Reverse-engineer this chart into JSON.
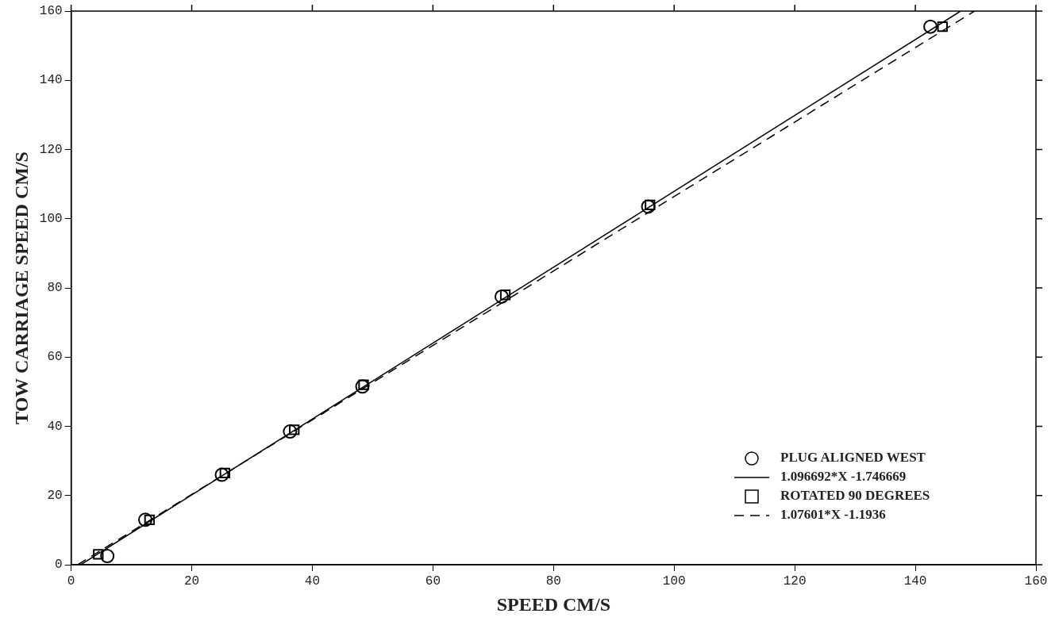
{
  "chart_data": {
    "type": "scatter",
    "xlabel": "SPEED CM/S",
    "ylabel": "TOW CARRIAGE SPEED CM/S",
    "xlim": [
      0,
      160
    ],
    "ylim": [
      0,
      160
    ],
    "xticks": [
      0,
      20,
      40,
      60,
      80,
      100,
      120,
      140,
      160
    ],
    "yticks": [
      0,
      20,
      40,
      60,
      80,
      100,
      120,
      140,
      160
    ],
    "grid": false,
    "legend": "bottom right",
    "series": [
      {
        "name": "PLUG ALIGNED WEST",
        "color": "#000000",
        "marker": "circle",
        "x": [
          6,
          12.3,
          25,
          36.3,
          48.3,
          71.4,
          95.7,
          142.5
        ],
        "values": [
          2.5,
          13,
          26,
          38.5,
          51.5,
          77.5,
          103.5,
          155.5
        ]
      },
      {
        "name": "1.096692*X -1.746669",
        "type": "line",
        "color": "#000000",
        "marker": "none",
        "line_style": "solid",
        "x": [
          1.6,
          147.5
        ],
        "values": [
          0,
          160
        ]
      },
      {
        "name": "ROTATED 90 DEGREES",
        "color": "#000000",
        "marker": "square",
        "x": [
          4.5,
          13,
          25.5,
          37,
          48.5,
          72,
          96,
          144.5
        ],
        "values": [
          3,
          13,
          26.5,
          39,
          52,
          78,
          104,
          155.5
        ]
      },
      {
        "name": "1.07601*X -1.1936",
        "type": "line",
        "color": "#000000",
        "marker": "none",
        "line_style": "dashed",
        "x": [
          1.1,
          149.8
        ],
        "values": [
          0,
          160
        ]
      }
    ]
  }
}
